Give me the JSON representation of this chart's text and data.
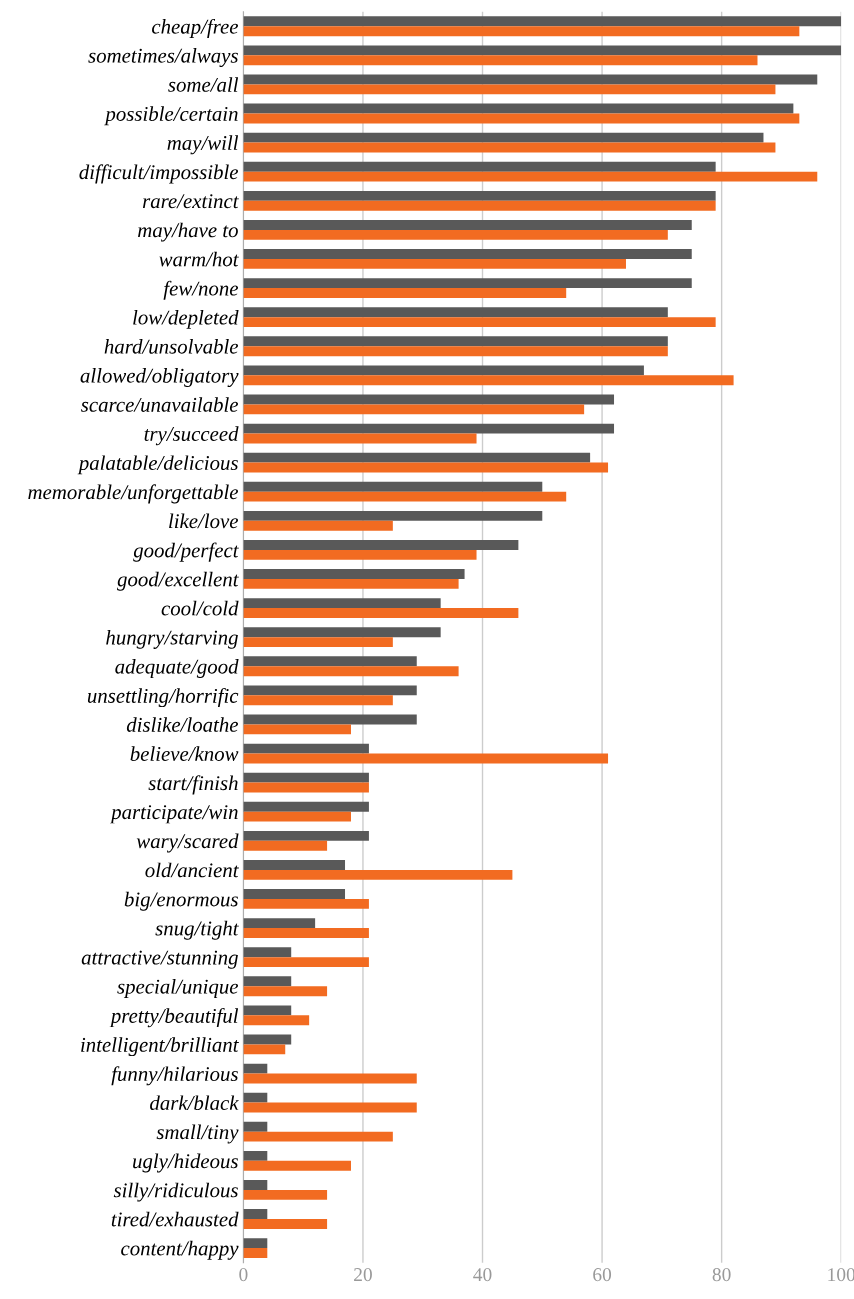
{
  "chart_data": {
    "type": "bar",
    "orientation": "horizontal",
    "categories": [
      "cheap/free",
      "sometimes/always",
      "some/all",
      "possible/certain",
      "may/will",
      "difficult/impossible",
      "rare/extinct",
      "may/have to",
      "warm/hot",
      "few/none",
      "low/depleted",
      "hard/unsolvable",
      "allowed/obligatory",
      "scarce/unavailable",
      "try/succeed",
      "palatable/delicious",
      "memorable/unforgettable",
      "like/love",
      "good/perfect",
      "good/excellent",
      "cool/cold",
      "hungry/starving",
      "adequate/good",
      "unsettling/horrific",
      "dislike/loathe",
      "believe/know",
      "start/finish",
      "participate/win",
      "wary/scared",
      "old/ancient",
      "big/enormous",
      "snug/tight",
      "attractive/stunning",
      "special/unique",
      "pretty/beautiful",
      "intelligent/brilliant",
      "funny/hilarious",
      "dark/black",
      "small/tiny",
      "ugly/hideous",
      "silly/ridiculous",
      "tired/exhausted",
      "content/happy"
    ],
    "series": [
      {
        "color": "#595959",
        "values": [
          100,
          100,
          96,
          92,
          87,
          79,
          79,
          75,
          75,
          75,
          71,
          71,
          67,
          62,
          62,
          58,
          50,
          50,
          46,
          37,
          33,
          33,
          29,
          29,
          29,
          21,
          21,
          21,
          21,
          17,
          17,
          12,
          8,
          8,
          8,
          8,
          4,
          4,
          4,
          4,
          4,
          4,
          4
        ]
      },
      {
        "color": "#f26b21",
        "values": [
          93,
          86,
          89,
          93,
          89,
          96,
          79,
          71,
          64,
          54,
          79,
          71,
          82,
          57,
          39,
          61,
          54,
          25,
          39,
          36,
          46,
          25,
          36,
          25,
          18,
          61,
          21,
          18,
          14,
          45,
          21,
          21,
          21,
          14,
          11,
          7,
          29,
          29,
          25,
          18,
          14,
          14,
          4
        ]
      }
    ],
    "xlim": [
      0,
      100
    ],
    "xticks": [
      0,
      20,
      40,
      60,
      80,
      100
    ],
    "grid": "x",
    "legend": false
  }
}
